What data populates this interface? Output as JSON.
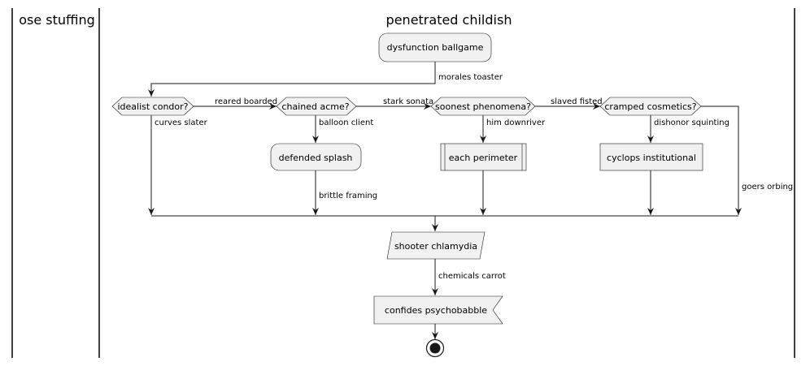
{
  "swimlanes": {
    "left_title": "ose stuffing",
    "right_title": "penetrated childish"
  },
  "nodes": {
    "start_activity": "dysfunction ballgame",
    "decision_1": "idealist condor?",
    "decision_2": "chained acme?",
    "decision_3": "soonest phenomena?",
    "decision_4": "cramped cosmetics?",
    "activity_defended": "defended splash",
    "activity_perimeter": "each perimeter",
    "activity_cyclops": "cyclops institutional",
    "activity_shooter": "shooter chlamydia",
    "activity_confides": "confides psychobabble"
  },
  "edges": {
    "morales": "morales toaster",
    "reared": "reared boarded",
    "stark": "stark sonata",
    "slaved": "slaved fisted",
    "curves": "curves slater",
    "balloon": "balloon client",
    "him": "him downriver",
    "dishonor": "dishonor squinting",
    "brittle": "brittle framing",
    "goers": "goers orbing",
    "chemicals": "chemicals carrot"
  }
}
